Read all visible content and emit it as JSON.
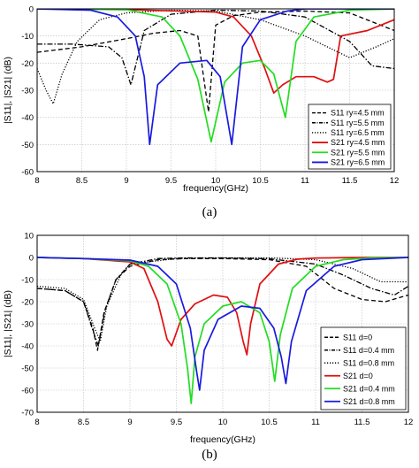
{
  "chart_data": [
    {
      "type": "line",
      "panel_label": "(a)",
      "xlabel": "frequency(GHz)",
      "ylabel": "|S11|, |S21| (dB)",
      "xlim": [
        8,
        12
      ],
      "ylim": [
        -60,
        0
      ],
      "xticks": [
        8,
        8.5,
        9,
        9.5,
        10,
        10.5,
        11,
        11.5,
        12
      ],
      "yticks": [
        0,
        -10,
        -20,
        -30,
        -40,
        -50,
        -60
      ],
      "grid": true,
      "legend_position": "bottom-right",
      "series": [
        {
          "name": "S11 ry=4.5 mm",
          "color": "#000000",
          "style": "dashed",
          "x": [
            8,
            8.5,
            9,
            9.3,
            9.6,
            9.8,
            9.92,
            10.0,
            10.2,
            10.5,
            11,
            11.5,
            12
          ],
          "y": [
            -16,
            -14,
            -11,
            -9,
            -8,
            -10,
            -38,
            -6,
            -2.5,
            -1.2,
            -0.8,
            -1.5,
            -8
          ]
        },
        {
          "name": "S11 ry=5.5 mm",
          "color": "#000000",
          "style": "dashdot",
          "x": [
            8,
            8.4,
            8.8,
            8.95,
            9.05,
            9.2,
            9.5,
            10,
            10.5,
            11,
            11.5,
            11.75,
            12
          ],
          "y": [
            -13,
            -13,
            -14,
            -18,
            -28,
            -8,
            -2,
            -0.5,
            -0.8,
            -3,
            -12,
            -21,
            -22
          ]
        },
        {
          "name": "S11 ry=6.5 mm",
          "color": "#000000",
          "style": "dotted",
          "x": [
            8,
            8.1,
            8.18,
            8.28,
            8.45,
            8.7,
            9,
            9.5,
            10,
            10.5,
            11,
            11.5,
            11.8,
            12
          ],
          "y": [
            -22,
            -30,
            -35,
            -24,
            -12,
            -4,
            -1.5,
            -0.5,
            -0.8,
            -4,
            -10,
            -18,
            -14,
            -11
          ]
        },
        {
          "name": "S21 ry=4.5 mm",
          "color": "#e01010",
          "style": "solid",
          "x": [
            8,
            9,
            10,
            10.2,
            10.4,
            10.55,
            10.65,
            10.75,
            10.9,
            11.1,
            11.25,
            11.32,
            11.4,
            11.7,
            12
          ],
          "y": [
            0,
            -0.3,
            -1.2,
            -3,
            -10,
            -22,
            -31,
            -28,
            -25,
            -25,
            -27,
            -26,
            -10,
            -8,
            -4
          ]
        },
        {
          "name": "S21 ry=5.5 mm",
          "color": "#22dd22",
          "style": "solid",
          "x": [
            8,
            9,
            9.4,
            9.6,
            9.8,
            9.95,
            10.1,
            10.3,
            10.5,
            10.65,
            10.78,
            10.9,
            11.1,
            11.5,
            12
          ],
          "y": [
            0,
            -0.3,
            -3,
            -10,
            -26,
            -49,
            -27,
            -20,
            -19,
            -24,
            -40,
            -12,
            -3,
            -0.5,
            0
          ]
        },
        {
          "name": "S21 ry=6.5 mm",
          "color": "#1a1ae0",
          "style": "solid",
          "x": [
            8,
            8.6,
            8.9,
            9.1,
            9.2,
            9.26,
            9.35,
            9.6,
            9.9,
            10.05,
            10.18,
            10.3,
            10.5,
            10.8,
            11,
            11.5,
            12
          ],
          "y": [
            0,
            -0.5,
            -3,
            -10,
            -25,
            -50,
            -28,
            -20,
            -19,
            -25,
            -50,
            -14,
            -4,
            -0.8,
            0,
            0,
            0
          ]
        }
      ]
    },
    {
      "type": "line",
      "panel_label": "(b)",
      "xlabel": "frequency(GHz)",
      "ylabel": "|S11|, |S21| (dB)",
      "xlim": [
        8,
        12
      ],
      "ylim": [
        -70,
        10
      ],
      "xticks": [
        8,
        8.5,
        9,
        9.5,
        10,
        10.5,
        11,
        11.5,
        12
      ],
      "yticks": [
        10,
        0,
        -10,
        -20,
        -30,
        -40,
        -50,
        -60,
        -70
      ],
      "grid": true,
      "legend_position": "bottom-right",
      "series": [
        {
          "name": "S11 d=0",
          "color": "#000000",
          "style": "dashed",
          "x": [
            8,
            8.3,
            8.5,
            8.6,
            8.65,
            8.72,
            8.85,
            9,
            9.3,
            9.6,
            10,
            10.5,
            10.9,
            11.2,
            11.5,
            11.75,
            12
          ],
          "y": [
            -14,
            -15,
            -20,
            -32,
            -42,
            -25,
            -10,
            -4,
            -1,
            -0.5,
            -0.5,
            -1,
            -4,
            -14,
            -19,
            -20,
            -17
          ]
        },
        {
          "name": "S11 d=0.4 mm",
          "color": "#000000",
          "style": "dashdot",
          "x": [
            8,
            8.3,
            8.5,
            8.6,
            8.66,
            8.73,
            8.85,
            9,
            9.3,
            9.6,
            10,
            10.5,
            11,
            11.3,
            11.6,
            11.85,
            12
          ],
          "y": [
            -14,
            -15,
            -20,
            -33,
            -40,
            -24,
            -10,
            -3,
            -0.5,
            -0.2,
            -0.2,
            -0.6,
            -3,
            -8,
            -14,
            -17,
            -13
          ]
        },
        {
          "name": "S11 d=0.8 mm",
          "color": "#000000",
          "style": "dotted",
          "x": [
            8,
            8.3,
            8.5,
            8.62,
            8.68,
            8.75,
            8.9,
            9,
            9.5,
            10,
            10.5,
            11,
            11.4,
            11.7,
            12
          ],
          "y": [
            -13,
            -14,
            -19,
            -32,
            -38,
            -22,
            -8,
            -3,
            -0.5,
            -0.2,
            -0.2,
            -1,
            -5,
            -11,
            -11
          ]
        },
        {
          "name": "S21 d=0",
          "color": "#e01010",
          "style": "solid",
          "x": [
            8,
            8.5,
            9,
            9.15,
            9.3,
            9.4,
            9.45,
            9.55,
            9.7,
            9.9,
            10.05,
            10.15,
            10.22,
            10.26,
            10.3,
            10.4,
            10.6,
            10.8,
            11,
            11.5,
            12
          ],
          "y": [
            0,
            -0.5,
            -2,
            -5,
            -20,
            -37,
            -40,
            -28,
            -21,
            -17,
            -18,
            -25,
            -38,
            -44,
            -30,
            -12,
            -3,
            -0.8,
            -0.3,
            0,
            0
          ]
        },
        {
          "name": "S21 d=0.4 mm",
          "color": "#22dd22",
          "style": "solid",
          "x": [
            8,
            8.5,
            9,
            9.2,
            9.4,
            9.55,
            9.62,
            9.66,
            9.7,
            9.8,
            10,
            10.2,
            10.4,
            10.5,
            10.56,
            10.62,
            10.75,
            11,
            11.3,
            11.6,
            12
          ],
          "y": [
            0,
            -0.5,
            -1.5,
            -4,
            -12,
            -30,
            -50,
            -66,
            -45,
            -30,
            -22,
            -20,
            -25,
            -38,
            -56,
            -35,
            -14,
            -4,
            -1,
            -0.2,
            0
          ]
        },
        {
          "name": "S21 d=0.8 mm",
          "color": "#1a1ae0",
          "style": "solid",
          "x": [
            8,
            8.5,
            9,
            9.3,
            9.5,
            9.65,
            9.72,
            9.75,
            9.8,
            9.95,
            10.2,
            10.4,
            10.55,
            10.63,
            10.68,
            10.74,
            10.9,
            11.2,
            11.5,
            12
          ],
          "y": [
            0,
            -0.5,
            -1.2,
            -4,
            -12,
            -32,
            -52,
            -60,
            -42,
            -28,
            -22,
            -23,
            -32,
            -45,
            -57,
            -38,
            -15,
            -4,
            -1,
            0
          ]
        }
      ]
    }
  ]
}
